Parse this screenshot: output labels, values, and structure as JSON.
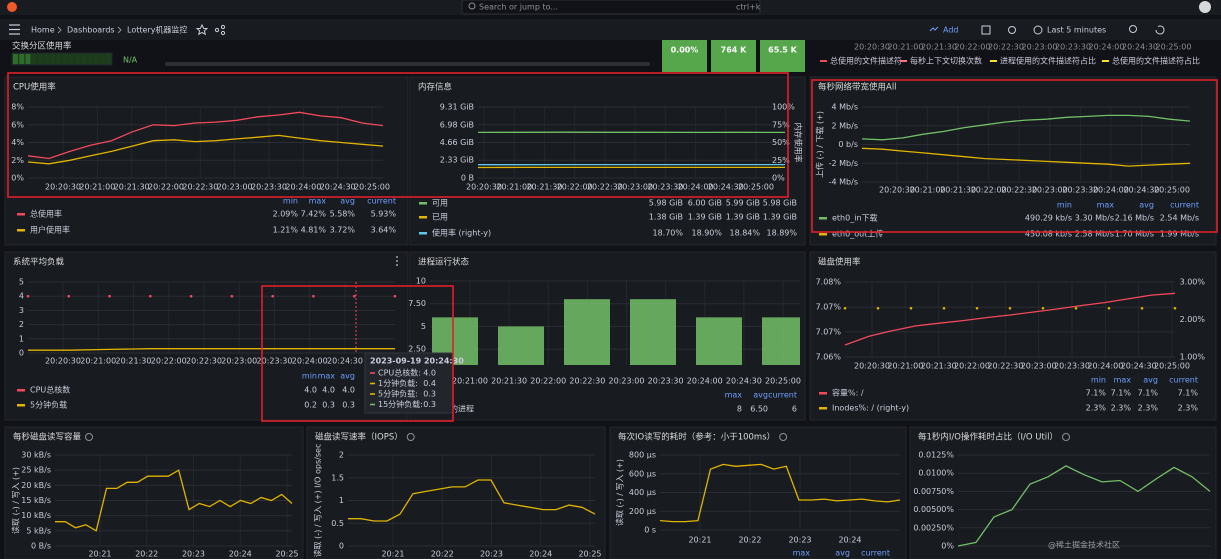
{
  "topbar": {
    "search": "Search or jump to...",
    "shortcut": "ctrl+k"
  },
  "nav": {
    "breadcrumbs": [
      "Home",
      "Dashboards",
      "Lottery机器监控"
    ],
    "add": "Add",
    "time_range": "Last 5 minutes"
  },
  "swap": {
    "title": "交换分区使用率",
    "value": "N/A"
  },
  "stats": [
    "0.00%",
    "764 K",
    "65.5 K"
  ],
  "fd_panel": {
    "xticks": [
      "20:20:30",
      "20:21:00",
      "20:21:30",
      "20:22:00",
      "20:22:30",
      "20:23:00",
      "20:23:30",
      "20:24:00",
      "20:24:30",
      "20:25:00"
    ],
    "legend": [
      {
        "name": "总使用的文件描述符",
        "color": "#f2495c"
      },
      {
        "name": "每秒上下文切换次数",
        "color": "#ff7383"
      },
      {
        "name": "进程使用的文件描述符占比",
        "color": "#fade2a"
      },
      {
        "name": "总使用的文件描述符占比",
        "color": "#fade2a"
      }
    ]
  },
  "chart_data": [
    {
      "type": "line",
      "title": "CPU使用率",
      "xticks": [
        "20:20:30",
        "20:21:00",
        "20:21:30",
        "20:22:00",
        "20:22:30",
        "20:23:00",
        "20:23:30",
        "20:24:00",
        "20:24:30",
        "20:25:00"
      ],
      "ylim": [
        0,
        8
      ],
      "yticks": [
        {
          "value": 0,
          "label": "0%"
        },
        {
          "value": 2,
          "label": "2%"
        },
        {
          "value": 4,
          "label": "4%"
        },
        {
          "value": 6,
          "label": "6%"
        },
        {
          "value": 8,
          "label": "8%"
        }
      ],
      "legend_columns": [
        "min",
        "max",
        "avg",
        "current"
      ],
      "series": [
        {
          "name": "总使用率",
          "color": "#f2495c",
          "values": [
            2.5,
            2.2,
            3,
            3.7,
            4.2,
            5.2,
            6,
            5.9,
            6.2,
            6.3,
            6.5,
            6.9,
            7.1,
            7.4,
            7,
            6.8,
            6.2,
            5.9
          ],
          "stats": [
            "2.09%",
            "7.42%",
            "5.58%",
            "5.93%"
          ]
        },
        {
          "name": "用户使用率",
          "color": "#e0b400",
          "values": [
            1.8,
            1.6,
            2,
            2.5,
            3,
            3.6,
            4.2,
            4.3,
            4.1,
            4.2,
            4.4,
            4.6,
            4.8,
            4.5,
            4.2,
            4,
            3.8,
            3.6
          ],
          "stats": [
            "1.21%",
            "4.81%",
            "3.72%",
            "3.64%"
          ]
        }
      ]
    },
    {
      "type": "line",
      "title": "内存信息",
      "xticks": [
        "20:20:30",
        "20:21:00",
        "20:21:30",
        "20:22:00",
        "20:22:30",
        "20:23:00",
        "20:23:30",
        "20:24:00",
        "20:24:30",
        "20:25:00"
      ],
      "ylim": [
        0,
        9.31
      ],
      "yticks": [
        {
          "value": 0,
          "label": "0 B"
        },
        {
          "value": 2.33,
          "label": "2.33 GiB"
        },
        {
          "value": 4.66,
          "label": "4.66 GiB"
        },
        {
          "value": 6.98,
          "label": "6.98 GiB"
        },
        {
          "value": 9.31,
          "label": "9.31 GiB"
        }
      ],
      "y2lim": [
        0,
        100
      ],
      "y2ticks": [
        {
          "value": 0,
          "label": "0%"
        },
        {
          "value": 25,
          "label": "25%"
        },
        {
          "value": 50,
          "label": "50%"
        },
        {
          "value": 75,
          "label": "75%"
        },
        {
          "value": 100,
          "label": "100%"
        }
      ],
      "y2label": "内存使用率",
      "series": [
        {
          "name": "可用",
          "color": "#73bf69",
          "values": [
            5.98,
            5.99,
            6,
            5.99,
            5.99,
            5.98,
            5.99,
            5.98
          ],
          "stats": [
            "5.98 GiB",
            "6.00 GiB",
            "5.99 GiB",
            "5.98 GiB"
          ]
        },
        {
          "name": "已用",
          "color": "#e0b400",
          "values": [
            1.38,
            1.39,
            1.39,
            1.39,
            1.39,
            1.39,
            1.39,
            1.39
          ],
          "stats": [
            "1.38 GiB",
            "1.39 GiB",
            "1.39 GiB",
            "1.39 GiB"
          ]
        },
        {
          "name": "使用率 (right-y)",
          "color": "#5fc8e8",
          "axis": "y2",
          "values": [
            18.7,
            18.8,
            18.9,
            18.85,
            18.84,
            18.86,
            18.88,
            18.89
          ],
          "stats": [
            "18.70%",
            "18.90%",
            "18.84%",
            "18.89%"
          ]
        }
      ]
    },
    {
      "type": "line",
      "title": "每秒网络带宽使用All",
      "xticks": [
        "20:20:30",
        "20:21:00",
        "20:21:30",
        "20:22:00",
        "20:22:30",
        "20:23:00",
        "20:23:30",
        "20:24:00",
        "20:24:30",
        "20:25:00"
      ],
      "ylim": [
        -4,
        4
      ],
      "yticks": [
        {
          "value": -4,
          "label": "-4 Mb/s"
        },
        {
          "value": -2,
          "label": "-2 Mb/s"
        },
        {
          "value": 0,
          "label": "0 b/s"
        },
        {
          "value": 2,
          "label": "2 Mb/s"
        },
        {
          "value": 4,
          "label": "4 Mb/s"
        }
      ],
      "ylabel": "上传 (-) / 下载 (+)",
      "legend_columns": [
        "min",
        "max",
        "avg",
        "current"
      ],
      "series": [
        {
          "name": "eth0_in下载",
          "color": "#73bf69",
          "values": [
            0.6,
            0.5,
            0.7,
            1.1,
            1.4,
            1.8,
            2.1,
            2.4,
            2.6,
            2.7,
            2.9,
            3,
            3.1,
            3.1,
            3,
            2.7,
            2.5
          ],
          "stats": [
            "490.29 kb/s",
            "3.30 Mb/s",
            "2.16 Mb/s",
            "2.54 Mb/s"
          ]
        },
        {
          "name": "eth0_out上传",
          "color": "#e0b400",
          "values": [
            -0.4,
            -0.5,
            -0.7,
            -0.9,
            -1.1,
            -1.3,
            -1.5,
            -1.6,
            -1.7,
            -1.8,
            -1.9,
            -2,
            -2.1,
            -2.3,
            -2.2,
            -2.1,
            -2
          ],
          "stats": [
            "450.08 kb/s",
            "2.58 Mb/s",
            "1.70 Mb/s",
            "1.99 Mb/s"
          ]
        }
      ]
    },
    {
      "type": "line",
      "title": "系统平均负载",
      "xticks": [
        "20:20:30",
        "20:21:00",
        "20:21:30",
        "20:22:00",
        "20:22:30",
        "20:23:00",
        "20:23:30",
        "20:24:00",
        "20:24:30"
      ],
      "ylim": [
        0,
        5
      ],
      "yticks": [
        0,
        1,
        2,
        3,
        4,
        5
      ],
      "legend_columns": [
        "min",
        "max",
        "avg"
      ],
      "series": [
        {
          "name": "CPU总核数",
          "color": "#f2495c",
          "style": "points",
          "values": [
            4,
            4,
            4,
            4,
            4,
            4,
            4,
            4,
            4,
            4
          ],
          "stats": [
            "4.0",
            "4.0",
            "4.0"
          ]
        },
        {
          "name": "5分钟负载",
          "color": "#e0b400",
          "values": [
            0.2,
            0.2,
            0.25,
            0.3,
            0.3,
            0.3,
            0.3,
            0.3,
            0.3,
            0.3
          ],
          "stats": [
            "0.2",
            "0.3",
            "0.3"
          ]
        }
      ]
    },
    {
      "type": "bar",
      "title": "进程运行状态",
      "xticks": [
        "20:21:00",
        "20:21:30",
        "20:22:00",
        "20:22:30",
        "20:23:00",
        "20:23:30",
        "20:24:00",
        "20:24:30",
        "20:25:00"
      ],
      "ylim": [
        0.75,
        10
      ],
      "yticks": [
        {
          "value": 2.5,
          "label": "2.50"
        },
        5,
        {
          "value": 7.5,
          "label": "7.50"
        },
        10
      ],
      "legend_columns": [
        "max",
        "avg",
        "current"
      ],
      "series": [
        {
          "name": "的进程",
          "color": "#73bf69",
          "values": [
            6,
            5,
            8,
            8,
            6,
            6
          ],
          "stats": [
            "8",
            "6.50",
            "6"
          ]
        }
      ]
    },
    {
      "type": "line",
      "title": "磁盘使用率",
      "xticks": [
        "20:20:30",
        "20:21:00",
        "20:21:30",
        "20:22:00",
        "20:22:30",
        "20:23:00",
        "20:23:30",
        "20:24:00",
        "20:24:30",
        "20:25:00"
      ],
      "ylim": [
        7.06,
        7.08
      ],
      "yticks": [
        {
          "value": 7.06,
          "label": "7.06%"
        },
        {
          "value": 7.0667,
          "label": "7.07%"
        },
        {
          "value": 7.0733,
          "label": "7.07%"
        },
        {
          "value": 7.08,
          "label": "7.08%"
        }
      ],
      "y2lim": [
        1,
        3
      ],
      "y2ticks": [
        {
          "value": 1,
          "label": "1.00%"
        },
        {
          "value": 2,
          "label": "2.00%"
        },
        {
          "value": 3,
          "label": "3.00%"
        }
      ],
      "legend_columns": [
        "min",
        "max",
        "avg",
        "current"
      ],
      "series": [
        {
          "name": "容量%: /",
          "color": "#f2495c",
          "values": [
            7.0632,
            7.0655,
            7.067,
            7.0683,
            7.069,
            7.0697,
            7.0705,
            7.0712,
            7.072,
            7.0728,
            7.0737,
            7.0745,
            7.0755,
            7.0765,
            7.077
          ],
          "stats": [
            "7.1%",
            "7.1%",
            "7.1%",
            "7.1%"
          ]
        },
        {
          "name": "Inodes%: / (right-y)",
          "color": "#e0b400",
          "style": "points",
          "axis": "y2",
          "values": [
            2.3,
            2.3,
            2.3,
            2.3,
            2.3,
            2.3,
            2.3,
            2.3,
            2.3,
            2.3,
            2.3
          ],
          "stats": [
            "2.3%",
            "2.3%",
            "2.3%",
            "2.3%"
          ]
        }
      ]
    },
    {
      "type": "line",
      "title": "每秒磁盘读写容量",
      "xticks": [
        "20:21",
        "20:22",
        "20:23",
        "20:24",
        "20:25"
      ],
      "ylim": [
        0,
        30
      ],
      "yticks": [
        {
          "value": 0,
          "label": "0 B/s"
        },
        {
          "value": 5,
          "label": "5 kB/s"
        },
        {
          "value": 10,
          "label": "10 kB/s"
        },
        {
          "value": 15,
          "label": "15 kB/s"
        },
        {
          "value": 20,
          "label": "20 kB/s"
        },
        {
          "value": 25,
          "label": "25 kB/s"
        },
        {
          "value": 30,
          "label": "30 kB/s"
        }
      ],
      "ylabel": "读取 (-) / 写入 (+)",
      "series": [
        {
          "color": "#e0b400",
          "values": [
            8,
            8,
            6,
            7,
            5,
            19,
            19,
            21,
            21,
            23,
            23,
            23,
            25,
            12,
            14,
            13,
            15,
            13,
            15,
            14,
            16,
            15,
            17,
            14
          ]
        }
      ]
    },
    {
      "type": "line",
      "title": "磁盘读写速率（IOPS）",
      "xticks": [
        "20:21",
        "20:22",
        "20:23",
        "20:24",
        "20:25"
      ],
      "ylim": [
        0,
        2
      ],
      "yticks": [
        0,
        0.5,
        1,
        1.5,
        2
      ],
      "ylabel": "读取 (-) / 写入 (+) I/O ops/sec",
      "series": [
        {
          "color": "#e0b400",
          "values": [
            0.6,
            0.6,
            0.55,
            0.55,
            0.7,
            1.15,
            1.2,
            1.25,
            1.3,
            1.3,
            1.45,
            1.45,
            0.95,
            0.9,
            0.85,
            0.8,
            0.8,
            0.9,
            0.85,
            0.7
          ]
        }
      ]
    },
    {
      "type": "line",
      "title": "每次IO读写的耗时（参考：小于100ms）",
      "xticks": [
        "20:21",
        "20:22",
        "20:23",
        "20:24"
      ],
      "ylim": [
        0,
        800
      ],
      "yticks": [
        {
          "value": 0,
          "label": "0 s"
        },
        {
          "value": 200,
          "label": "200 µs"
        },
        {
          "value": 400,
          "label": "400 µs"
        },
        {
          "value": 600,
          "label": "600 µs"
        },
        {
          "value": 800,
          "label": "800 µs"
        }
      ],
      "ylabel": "读取 (-) / 写入 (+)",
      "legend_columns": [
        "max",
        "avg",
        "current"
      ],
      "series": [
        {
          "color": "#e0b400",
          "values": [
            100,
            90,
            90,
            100,
            650,
            700,
            680,
            690,
            700,
            650,
            680,
            320,
            320,
            330,
            310,
            320,
            330,
            310,
            300,
            320
          ]
        }
      ]
    },
    {
      "type": "line",
      "title": "每1秒内I/O操作耗时占比（I/O Util）",
      "ylim": [
        0,
        0.0125
      ],
      "yticks": [
        {
          "value": 0,
          "label": "0%"
        },
        {
          "value": 0.0025,
          "label": "0.00250%"
        },
        {
          "value": 0.005,
          "label": "0.00500%"
        },
        {
          "value": 0.0075,
          "label": "0.00750%"
        },
        {
          "value": 0.01,
          "label": "0.0100%"
        },
        {
          "value": 0.0125,
          "label": "0.0125%"
        }
      ],
      "series": [
        {
          "color": "#73bf69",
          "values": [
            0,
            0.0005,
            0.004,
            0.005,
            0.0085,
            0.0095,
            0.011,
            0.0098,
            0.0088,
            0.009,
            0.0075,
            0.0092,
            0.0108,
            0.0095,
            0.0075
          ]
        }
      ]
    }
  ],
  "tooltip": {
    "time": "2023-09-19 20:24:30",
    "rows": [
      {
        "name": "CPU总核数:",
        "value": "4.0",
        "color": "#f2495c"
      },
      {
        "name": "1分钟负载:",
        "value": "0.4",
        "color": "#e0b400"
      },
      {
        "name": "5分钟负载:",
        "value": "0.3",
        "color": "#e0b400"
      },
      {
        "name": "15分钟负载:",
        "value": "0.3",
        "color": "#73bf69"
      }
    ]
  },
  "watermark": "@稀土掘金技术社区"
}
